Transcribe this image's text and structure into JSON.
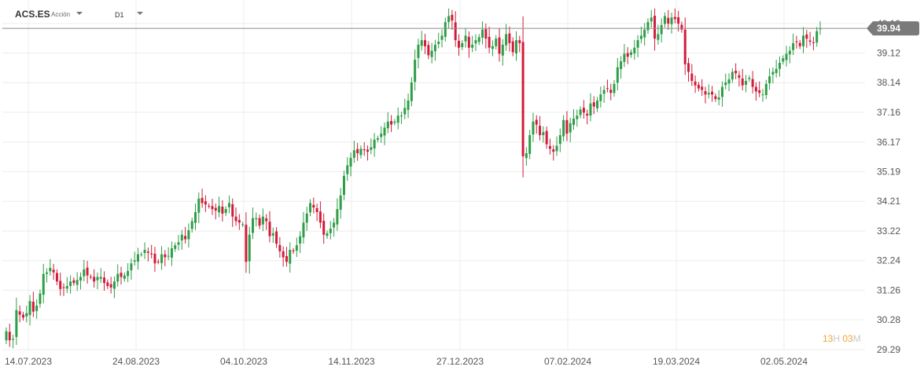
{
  "header": {
    "symbol": "ACS.ES",
    "instrument_type": "Acción",
    "timeframe": "D1"
  },
  "timer": {
    "hours": "13",
    "hours_unit": "H",
    "minutes": "03",
    "minutes_unit": "M"
  },
  "colors": {
    "up": "#2e9e47",
    "down": "#d21b3a",
    "grid": "#ececec",
    "price_line": "#8c8c8c",
    "price_badge": "#7a7a7a",
    "axis_text": "#555555"
  },
  "chart_data": {
    "type": "candlestick",
    "timeframe": "D1",
    "current_price": "39.94",
    "y_ticks": [
      "40.10",
      "39.12",
      "38.14",
      "37.16",
      "36.17",
      "35.19",
      "34.21",
      "33.22",
      "32.24",
      "31.26",
      "30.28",
      "29.29"
    ],
    "x_ticks": [
      "14.07.2023",
      "24.08.2023",
      "04.10.2023",
      "14.11.2023",
      "27.12.2023",
      "07.02.2024",
      "19.03.2024",
      "02.05.2024"
    ],
    "ylim": [
      29.2,
      40.7
    ],
    "grid": true,
    "closes": [
      29.9,
      29.6,
      29.65,
      30.6,
      30.45,
      30.35,
      30.5,
      30.9,
      30.55,
      30.75,
      31.15,
      31.8,
      31.85,
      32.0,
      31.85,
      31.55,
      31.3,
      31.35,
      31.4,
      31.55,
      31.5,
      31.6,
      31.7,
      31.95,
      31.75,
      31.7,
      31.55,
      31.7,
      31.7,
      31.5,
      31.4,
      31.35,
      31.55,
      31.8,
      31.7,
      31.75,
      31.9,
      32.15,
      32.25,
      32.45,
      32.45,
      32.6,
      32.5,
      32.45,
      32.15,
      32.2,
      32.45,
      32.35,
      32.4,
      32.65,
      32.75,
      32.85,
      33.1,
      32.95,
      33.25,
      33.55,
      33.85,
      34.3,
      34.15,
      34.1,
      34.05,
      33.95,
      33.9,
      34.05,
      33.8,
      33.95,
      34.15,
      33.7,
      33.55,
      33.5,
      33.45,
      32.2,
      33.1,
      33.65,
      33.65,
      33.4,
      33.7,
      33.55,
      33.05,
      33.15,
      32.8,
      32.55,
      32.35,
      32.2,
      32.6,
      32.55,
      32.75,
      33.05,
      33.5,
      33.8,
      34.15,
      34.0,
      33.85,
      33.5,
      33.1,
      33.15,
      33.3,
      33.5,
      33.95,
      34.4,
      35.05,
      35.4,
      35.65,
      35.9,
      35.8,
      35.95,
      35.9,
      35.85,
      36.0,
      36.25,
      36.3,
      36.45,
      36.65,
      36.85,
      36.75,
      36.85,
      37.05,
      37.05,
      37.3,
      37.55,
      38.15,
      38.9,
      39.4,
      39.55,
      39.35,
      39.05,
      39.2,
      39.4,
      39.5,
      39.7,
      40.15,
      40.35,
      40.2,
      39.55,
      39.3,
      39.45,
      39.7,
      39.3,
      39.4,
      39.55,
      39.65,
      39.9,
      39.6,
      39.3,
      39.35,
      39.6,
      39.1,
      39.4,
      39.75,
      39.45,
      39.15,
      39.55,
      39.45,
      35.7,
      35.8,
      36.4,
      36.85,
      36.75,
      36.4,
      36.5,
      36.1,
      35.95,
      35.85,
      36.05,
      36.4,
      36.9,
      36.45,
      36.8,
      36.95,
      37.05,
      37.25,
      37.15,
      37.05,
      37.45,
      37.35,
      37.55,
      37.75,
      37.9,
      37.95,
      37.8,
      38.1,
      38.65,
      38.85,
      39.1,
      39.0,
      39.15,
      39.3,
      39.55,
      39.7,
      39.9,
      40.15,
      40.3,
      39.6,
      39.75,
      40.05,
      40.35,
      40.1,
      40.3,
      40.25,
      40.1,
      39.9,
      38.75,
      38.5,
      38.2,
      38.05,
      37.95,
      37.9,
      37.75,
      37.8,
      37.75,
      37.6,
      37.65,
      38.0,
      38.15,
      38.25,
      38.5,
      38.45,
      38.3,
      38.05,
      38.2,
      38.3,
      38.0,
      37.85,
      37.8,
      37.75,
      38.1,
      38.35,
      38.5,
      38.6,
      38.8,
      38.95,
      39.1,
      39.2,
      39.45,
      39.5,
      39.35,
      39.7,
      39.6,
      39.5,
      39.45,
      39.85,
      39.94
    ],
    "extremes": {
      "high": 40.6,
      "low": 29.2
    }
  }
}
